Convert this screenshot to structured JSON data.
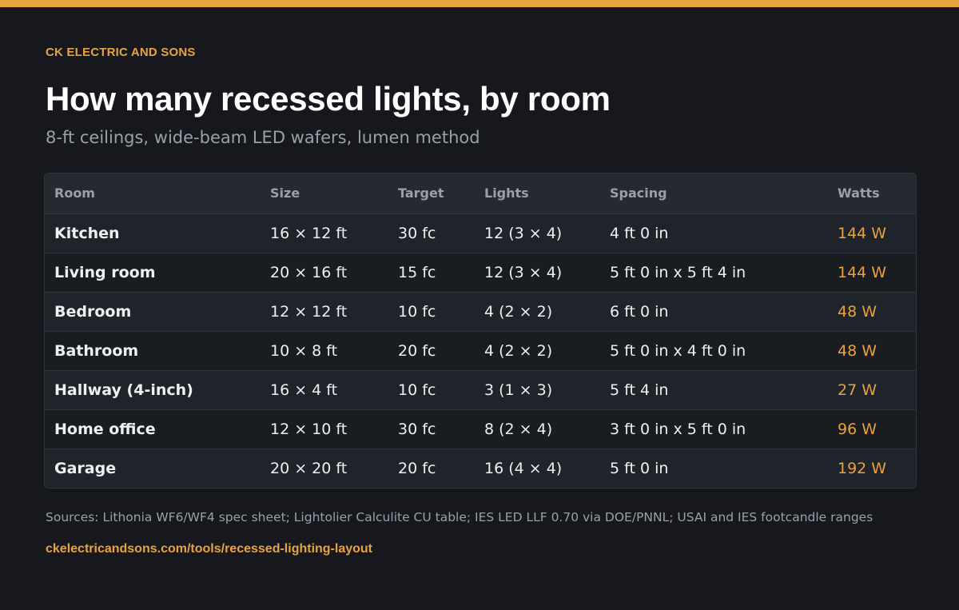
{
  "brand": "CK ELECTRIC AND SONS",
  "title": "How many recessed lights, by room",
  "subtitle": "8-ft ceilings, wide-beam LED wafers, lumen method",
  "table": {
    "headers": [
      "Room",
      "Size",
      "Target",
      "Lights",
      "Spacing",
      "Watts"
    ],
    "rows": [
      [
        "Kitchen",
        "16 × 12 ft",
        "30 fc",
        "12 (3 × 4)",
        "4 ft 0 in",
        "144 W"
      ],
      [
        "Living room",
        "20 × 16 ft",
        "15 fc",
        "12 (3 × 4)",
        "5 ft 0 in x 5 ft 4 in",
        "144 W"
      ],
      [
        "Bedroom",
        "12 × 12 ft",
        "10 fc",
        "4 (2 × 2)",
        "6 ft 0 in",
        "48 W"
      ],
      [
        "Bathroom",
        "10 × 8 ft",
        "20 fc",
        "4 (2 × 2)",
        "5 ft 0 in x 4 ft 0 in",
        "48 W"
      ],
      [
        "Hallway (4-inch)",
        "16 × 4 ft",
        "10 fc",
        "3 (1 × 3)",
        "5 ft 4 in",
        "27 W"
      ],
      [
        "Home office",
        "12 × 10 ft",
        "30 fc",
        "8 (2 × 4)",
        "3 ft 0 in x 5 ft 0 in",
        "96 W"
      ],
      [
        "Garage",
        "20 × 20 ft",
        "20 fc",
        "16 (4 × 4)",
        "5 ft 0 in",
        "192 W"
      ]
    ]
  },
  "footer": {
    "sources": "Sources: Lithonia WF6/WF4 spec sheet; Lightolier Calculite CU table; IES LED LLF 0.70 via DOE/PNNL; USAI and IES footcandle ranges",
    "url": "ckelectricandsons.com/tools/recessed-lighting-layout"
  },
  "colors": {
    "accent": "#e8a33d",
    "background": "#16181d"
  }
}
